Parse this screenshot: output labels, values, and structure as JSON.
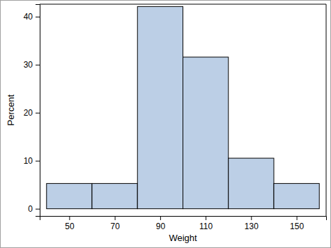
{
  "chart_data": {
    "type": "histogram",
    "x_label": "Weight",
    "y_label": "Percent",
    "bins": [
      40,
      60,
      80,
      100,
      120,
      140,
      160
    ],
    "values": [
      5.26,
      5.26,
      42.11,
      31.58,
      10.53,
      5.26
    ],
    "color": "#bccfe6",
    "xlim": [
      37,
      163
    ],
    "xticks": [
      50,
      70,
      90,
      110,
      130,
      150
    ],
    "ylim": [
      -1.5,
      42.6
    ],
    "yticks": [
      0,
      10,
      20,
      30,
      40
    ],
    "grid": false
  }
}
